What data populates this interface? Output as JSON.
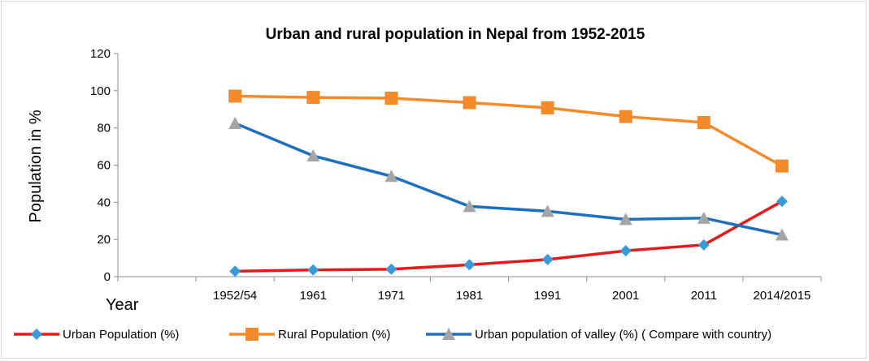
{
  "chart_data": {
    "type": "line",
    "title": "Urban and rural population in Nepal from 1952-2015",
    "ylabel": "Population  in %",
    "xlabel": "Year",
    "ylim": [
      0,
      120
    ],
    "yticks": [
      0,
      20,
      40,
      60,
      80,
      100,
      120
    ],
    "categories": [
      "1952/54",
      "1961",
      "1971",
      "1981",
      "1991",
      "2001",
      "2011",
      "2014/2015"
    ],
    "grid": false,
    "legend_position": "bottom",
    "series": [
      {
        "name": "Urban Population (%)",
        "color": "#e41a1c",
        "marker": "diamond",
        "marker_color": "#3a9ad9",
        "values": [
          2.9,
          3.6,
          4,
          6.4,
          9.2,
          13.9,
          17.1,
          40.5
        ]
      },
      {
        "name": "Rural Population (%)",
        "color": "#f58a2b",
        "marker": "square",
        "marker_color": "#f58a2b",
        "values": [
          97.1,
          96.4,
          96,
          93.6,
          90.8,
          86.1,
          82.9,
          59.5
        ]
      },
      {
        "name": "Urban population of  valley (%)  ( Compare with country)",
        "color": "#1f6fbf",
        "marker": "triangle",
        "marker_color": "#a5a5a5",
        "values": [
          82.5,
          65,
          54,
          37.8,
          35.2,
          30.8,
          31.5,
          22.5
        ]
      }
    ]
  }
}
